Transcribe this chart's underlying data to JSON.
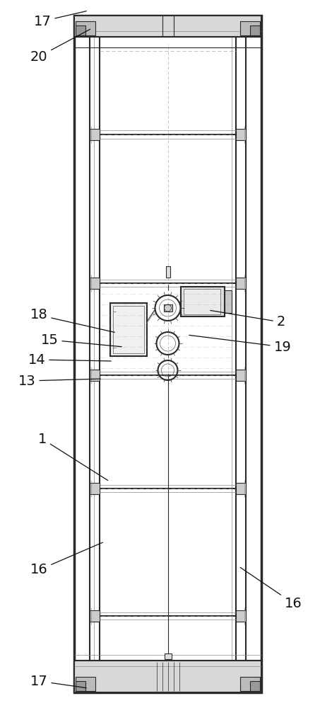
{
  "bg_color": "#ffffff",
  "dc": "#2a2a2a",
  "mc": "#555555",
  "llc": "#888888",
  "dsh": "#aaaaaa",
  "fig_width": 4.7,
  "fig_height": 10.0
}
